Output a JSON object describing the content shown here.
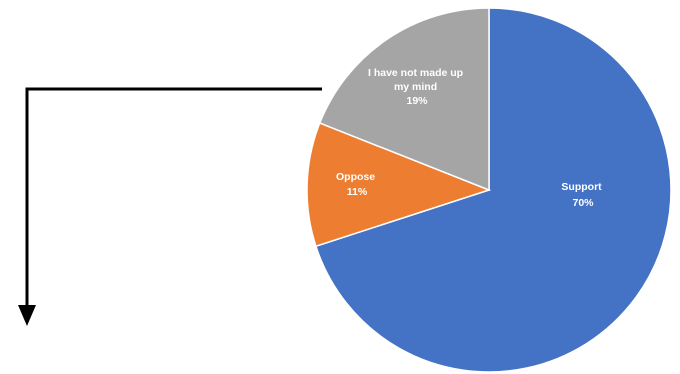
{
  "chart_data": {
    "type": "pie",
    "start_angle_deg": 0,
    "direction": "clockwise",
    "legend": "none",
    "slices": [
      {
        "label_lines": [
          "Support"
        ],
        "percent_label": "70%",
        "value": 70,
        "color": "#4472C4"
      },
      {
        "label_lines": [
          "Oppose"
        ],
        "percent_label": "11%",
        "value": 11,
        "color": "#ED7D31"
      },
      {
        "label_lines": [
          "I have not made up",
          "my mind"
        ],
        "percent_label": "19%",
        "value": 19,
        "color": "#A5A5A5"
      }
    ]
  },
  "connector": {
    "color": "#000000",
    "arrow_direction": "down"
  }
}
